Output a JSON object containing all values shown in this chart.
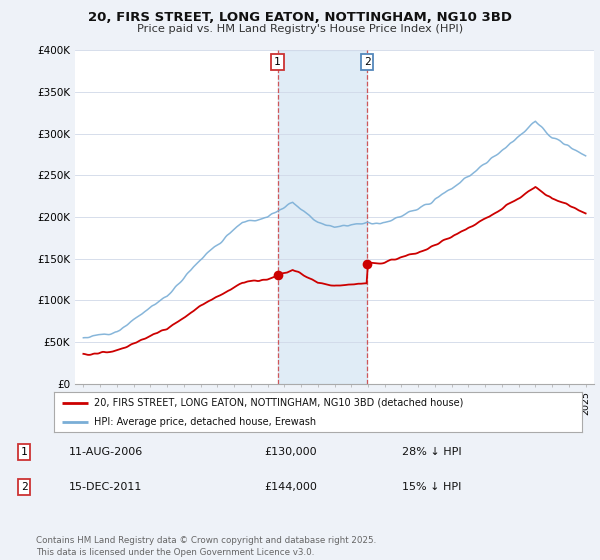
{
  "title_line1": "20, FIRS STREET, LONG EATON, NOTTINGHAM, NG10 3BD",
  "title_line2": "Price paid vs. HM Land Registry's House Price Index (HPI)",
  "hpi_color": "#7aaed6",
  "price_color": "#cc0000",
  "bg_color": "#eef2f8",
  "plot_bg": "#ffffff",
  "annotation1_date": "11-AUG-2006",
  "annotation1_price": "£130,000",
  "annotation1_hpi": "28% ↓ HPI",
  "annotation2_date": "15-DEC-2011",
  "annotation2_price": "£144,000",
  "annotation2_hpi": "15% ↓ HPI",
  "legend1": "20, FIRS STREET, LONG EATON, NOTTINGHAM, NG10 3BD (detached house)",
  "legend2": "HPI: Average price, detached house, Erewash",
  "footer": "Contains HM Land Registry data © Crown copyright and database right 2025.\nThis data is licensed under the Open Government Licence v3.0.",
  "ylim": [
    0,
    400000
  ],
  "yticks": [
    0,
    50000,
    100000,
    150000,
    200000,
    250000,
    300000,
    350000,
    400000
  ],
  "ytick_labels": [
    "£0",
    "£50K",
    "£100K",
    "£150K",
    "£200K",
    "£250K",
    "£300K",
    "£350K",
    "£400K"
  ],
  "shaded_start": 2006.6,
  "shaded_end": 2011.96,
  "marker1_x": 2006.6,
  "marker1_y": 130000,
  "marker2_x": 2011.96,
  "marker2_y": 144000,
  "xlim_left": 1994.5,
  "xlim_right": 2025.5
}
